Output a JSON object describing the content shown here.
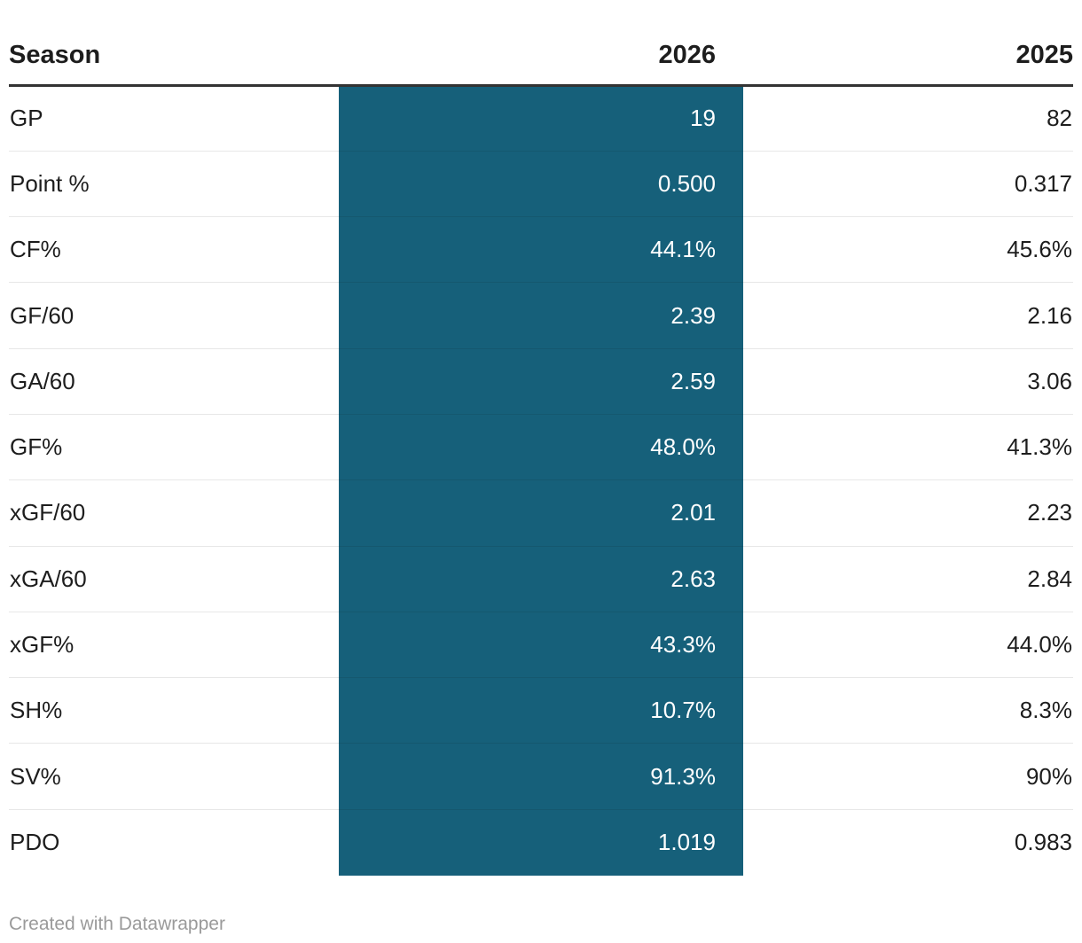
{
  "chart_data": {
    "type": "table",
    "title": "",
    "columns": [
      "Season",
      "2026",
      "2025"
    ],
    "highlighted_column": "2026",
    "rows": [
      {
        "metric": "GP",
        "v2026": "19",
        "v2025": "82"
      },
      {
        "metric": "Point %",
        "v2026": "0.500",
        "v2025": "0.317"
      },
      {
        "metric": "CF%",
        "v2026": "44.1%",
        "v2025": "45.6%"
      },
      {
        "metric": "GF/60",
        "v2026": "2.39",
        "v2025": "2.16"
      },
      {
        "metric": "GA/60",
        "v2026": "2.59",
        "v2025": "3.06"
      },
      {
        "metric": "GF%",
        "v2026": "48.0%",
        "v2025": "41.3%"
      },
      {
        "metric": "xGF/60",
        "v2026": "2.01",
        "v2025": "2.23"
      },
      {
        "metric": "xGA/60",
        "v2026": "2.63",
        "v2025": "2.84"
      },
      {
        "metric": "xGF%",
        "v2026": "43.3%",
        "v2025": "44.0%"
      },
      {
        "metric": "SH%",
        "v2026": "10.7%",
        "v2025": "8.3%"
      },
      {
        "metric": "SV%",
        "v2026": "91.3%",
        "v2025": "90%"
      },
      {
        "metric": "PDO",
        "v2026": "1.019",
        "v2025": "0.983"
      }
    ],
    "layout": {
      "grid": "horizontal-row-separators",
      "header_rule": true,
      "column_alignment": [
        "left",
        "right",
        "right"
      ]
    }
  },
  "footer": {
    "attribution": "Created with Datawrapper"
  },
  "colors": {
    "highlight_column_bg": "#16607a",
    "highlight_column_text": "#ffffff",
    "header_rule": "#333333",
    "row_separator": "#e8e8e8",
    "body_text": "#1d1d1d",
    "footer_text": "#9a9a9a",
    "background": "#ffffff"
  }
}
